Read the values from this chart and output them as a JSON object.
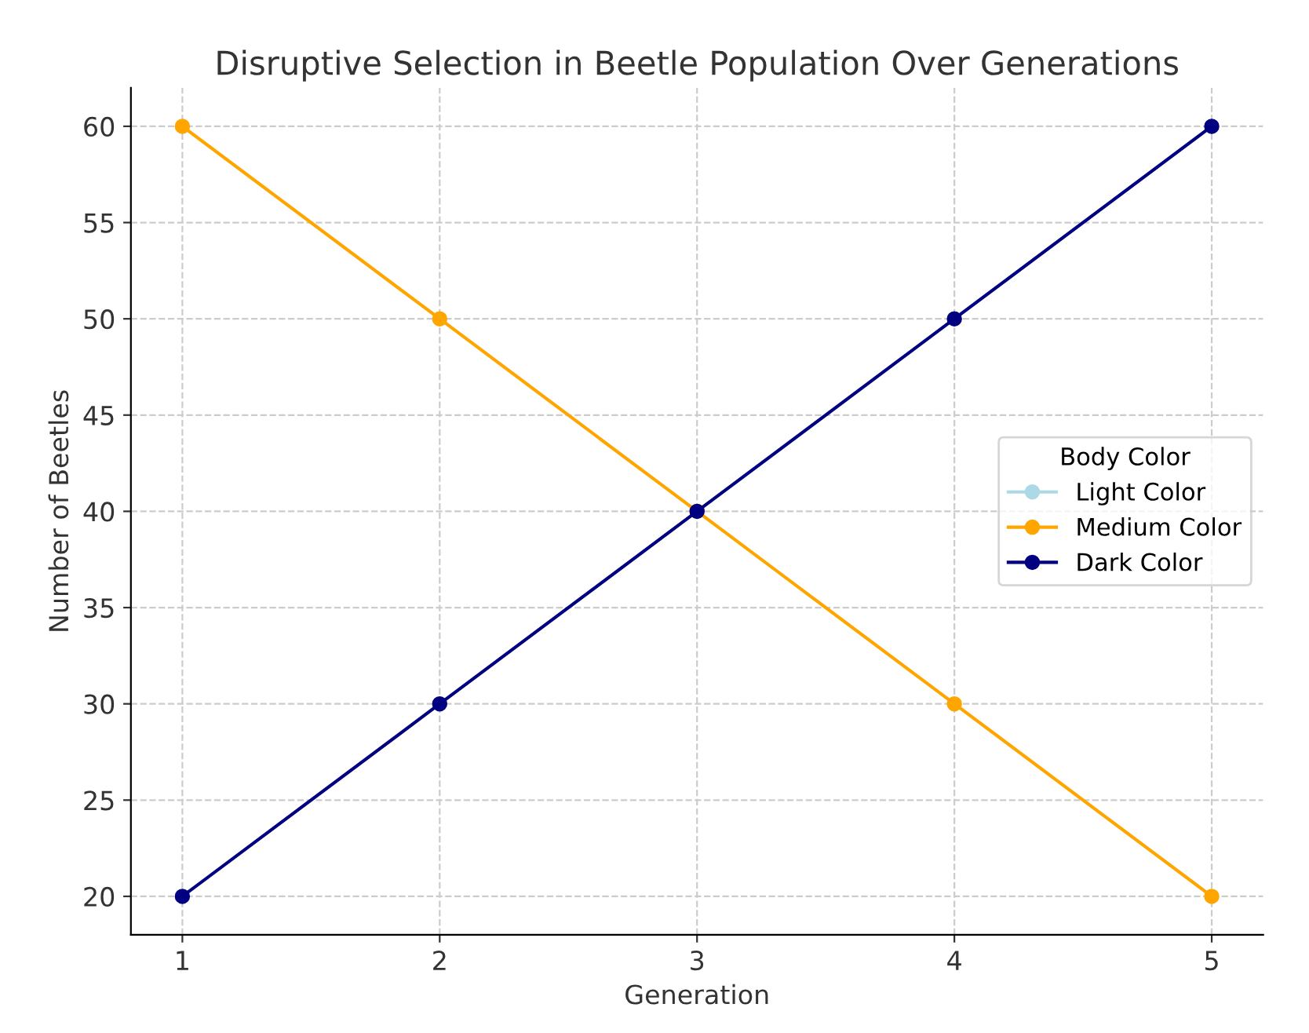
{
  "chart_data": {
    "type": "line",
    "title": "Disruptive Selection in Beetle Population Over Generations",
    "xlabel": "Generation",
    "ylabel": "Number of Beetles",
    "legend_title": "Body Color",
    "x": [
      1,
      2,
      3,
      4,
      5
    ],
    "series": [
      {
        "name": "Light Color",
        "color": "#add8e6",
        "values": [
          null,
          null,
          null,
          null,
          null
        ]
      },
      {
        "name": "Medium Color",
        "color": "#ffa500",
        "values": [
          60,
          50,
          40,
          30,
          20
        ]
      },
      {
        "name": "Dark Color",
        "color": "#000080",
        "values": [
          20,
          30,
          40,
          50,
          60
        ]
      }
    ],
    "xlim": [
      0.8,
      5.2
    ],
    "xticks": [
      1,
      2,
      3,
      4,
      5
    ],
    "ylim": [
      18,
      62
    ],
    "yticks": [
      20,
      25,
      30,
      35,
      40,
      45,
      50,
      55,
      60
    ],
    "grid": true,
    "legend": "right",
    "marker": "circle",
    "line_style": "solid"
  }
}
